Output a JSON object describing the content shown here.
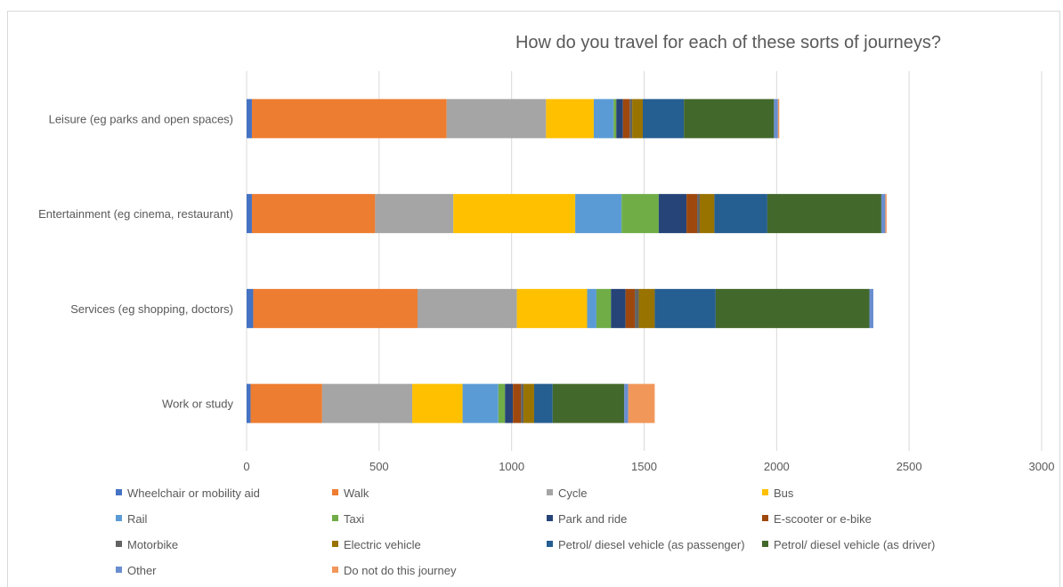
{
  "chart_data": {
    "type": "bar",
    "orientation": "horizontal",
    "stacked": true,
    "title": "How do you travel for each of these sorts of journeys?",
    "xlim": [
      0,
      3000
    ],
    "xticks": [
      "0",
      "500",
      "1000",
      "1500",
      "2000",
      "2500",
      "3000"
    ],
    "xtick_values": [
      0,
      500,
      1000,
      1500,
      2000,
      2500,
      3000
    ],
    "grid": "vertical",
    "legend_position": "bottom",
    "categories": [
      "Leisure (eg parks and open spaces)",
      "Entertainment (eg cinema, restaurant)",
      "Services (eg shopping, doctors)",
      "Work or study"
    ],
    "series": [
      {
        "name": "Wheelchair or mobility aid",
        "color": "#4472C4",
        "values": [
          20,
          20,
          25,
          15
        ]
      },
      {
        "name": "Walk",
        "color": "#ED7D31",
        "values": [
          735,
          465,
          620,
          270
        ]
      },
      {
        "name": "Cycle",
        "color": "#A5A5A5",
        "values": [
          375,
          295,
          375,
          340
        ]
      },
      {
        "name": "Bus",
        "color": "#FFC000",
        "values": [
          180,
          460,
          265,
          190
        ]
      },
      {
        "name": "Rail",
        "color": "#5B9BD5",
        "values": [
          75,
          175,
          35,
          135
        ]
      },
      {
        "name": "Taxi",
        "color": "#70AD47",
        "values": [
          10,
          140,
          55,
          25
        ]
      },
      {
        "name": "Park and ride",
        "color": "#264478",
        "values": [
          25,
          105,
          55,
          30
        ]
      },
      {
        "name": "E-scooter or e-bike",
        "color": "#9E480E",
        "values": [
          25,
          40,
          35,
          30
        ]
      },
      {
        "name": "Motorbike",
        "color": "#636363",
        "values": [
          10,
          10,
          15,
          10
        ]
      },
      {
        "name": "Electric vehicle",
        "color": "#997300",
        "values": [
          40,
          55,
          60,
          40
        ]
      },
      {
        "name": "Petrol/ diesel vehicle (as passenger)",
        "color": "#255E91",
        "values": [
          155,
          200,
          230,
          70
        ]
      },
      {
        "name": "Petrol/ diesel vehicle (as driver)",
        "color": "#43682B",
        "values": [
          340,
          430,
          580,
          270
        ]
      },
      {
        "name": "Other",
        "color": "#698ED0",
        "values": [
          15,
          15,
          15,
          15
        ]
      },
      {
        "name": "Do not do this journey",
        "color": "#F1975A",
        "values": [
          5,
          5,
          0,
          100
        ]
      }
    ]
  }
}
